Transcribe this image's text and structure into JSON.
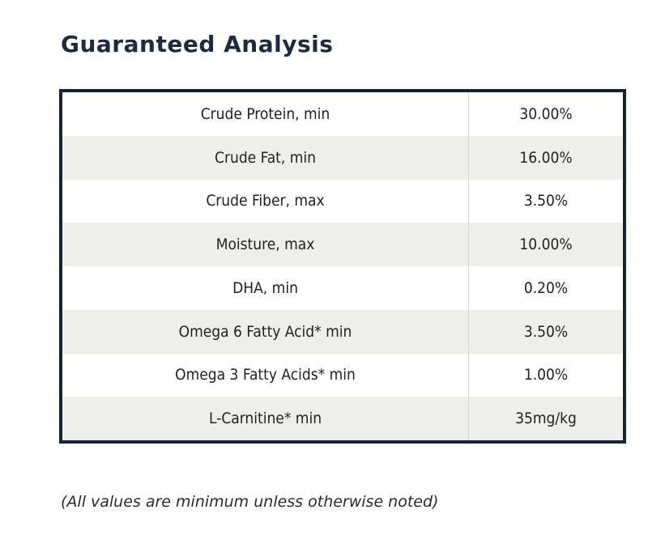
{
  "title": "Guaranteed Analysis",
  "rows": [
    {
      "name": "Crude Protein, min",
      "value": "30.00%"
    },
    {
      "name": "Crude Fat, min",
      "value": "16.00%"
    },
    {
      "name": "Crude Fiber, max",
      "value": "3.50%"
    },
    {
      "name": "Moisture, max",
      "value": "10.00%"
    },
    {
      "name": "DHA, min",
      "value": "0.20%"
    },
    {
      "name": "Omega 6 Fatty Acid* min",
      "value": "3.50%"
    },
    {
      "name": "Omega 3 Fatty Acids* min",
      "value": "1.00%"
    },
    {
      "name": "L-Carnitine* min",
      "value": "35mg/kg"
    }
  ],
  "footnote": "(All values are minimum unless otherwise noted)",
  "colors": {
    "title": "#1d2a3f",
    "border": "#16243a",
    "shaded_row": "#efefea"
  }
}
